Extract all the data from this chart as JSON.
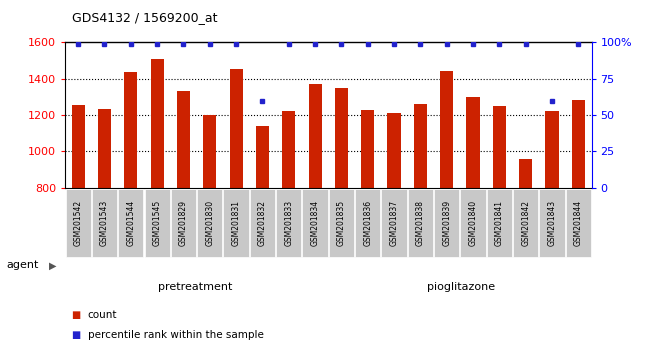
{
  "title": "GDS4132 / 1569200_at",
  "categories": [
    "GSM201542",
    "GSM201543",
    "GSM201544",
    "GSM201545",
    "GSM201829",
    "GSM201830",
    "GSM201831",
    "GSM201832",
    "GSM201833",
    "GSM201834",
    "GSM201835",
    "GSM201836",
    "GSM201837",
    "GSM201838",
    "GSM201839",
    "GSM201840",
    "GSM201841",
    "GSM201842",
    "GSM201843",
    "GSM201844"
  ],
  "counts": [
    1258,
    1235,
    1440,
    1510,
    1335,
    1200,
    1455,
    1140,
    1225,
    1370,
    1350,
    1230,
    1210,
    1260,
    1445,
    1300,
    1250,
    960,
    1225,
    1285
  ],
  "percentiles": [
    99,
    99,
    99,
    99,
    99,
    99,
    99,
    60,
    99,
    99,
    99,
    99,
    99,
    99,
    99,
    99,
    99,
    99,
    60,
    99
  ],
  "bar_color": "#cc2200",
  "dot_color": "#2222cc",
  "ylim_left": [
    800,
    1600
  ],
  "ylim_right": [
    0,
    100
  ],
  "yticks_left": [
    800,
    1000,
    1200,
    1400,
    1600
  ],
  "yticks_right": [
    0,
    25,
    50,
    75,
    100
  ],
  "grid_values": [
    1000,
    1200,
    1400
  ],
  "pretreatment_count": 10,
  "pioglitazone_count": 10,
  "agent_label": "agent",
  "pretreatment_label": "pretreatment",
  "pioglitazone_label": "pioglitazone",
  "legend_count_label": "count",
  "legend_pct_label": "percentile rank within the sample",
  "plot_bg": "#ffffff",
  "xtick_box_color": "#c8c8c8",
  "green_light": "#90ee90",
  "green_dark": "#44cc44",
  "fig_bg": "#ffffff"
}
